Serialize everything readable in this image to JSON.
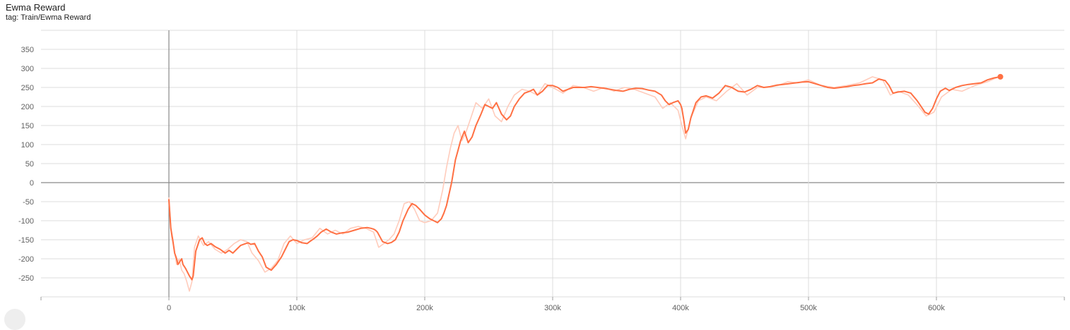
{
  "header": {
    "title": "Ewma Reward",
    "tag": "tag: Train/Ewma Reward"
  },
  "colors": {
    "smoothed_line": "#ff7043",
    "raw_line": "#ffccbc",
    "grid": "#dcdcdc",
    "zero_axis": "#8a8a8a"
  },
  "chart_data": {
    "type": "line",
    "title": "Ewma Reward",
    "xlabel": "",
    "ylabel": "",
    "xlim": [
      -100000,
      700000
    ],
    "ylim": [
      -300,
      350
    ],
    "x_ticks": [
      0,
      100000,
      200000,
      300000,
      400000,
      500000,
      600000
    ],
    "x_tick_labels": [
      "0",
      "100k",
      "200k",
      "300k",
      "400k",
      "500k",
      "600k"
    ],
    "y_ticks": [
      -250,
      -200,
      -150,
      -100,
      -50,
      0,
      50,
      100,
      150,
      200,
      250,
      300,
      350
    ],
    "y_tick_labels": [
      "-250",
      "-200",
      "-150",
      "-100",
      "-50",
      "0",
      "50",
      "100",
      "150",
      "200",
      "250",
      "300",
      "350"
    ],
    "grid": true,
    "series": [
      {
        "role": "smoothed",
        "x": [
          0,
          1500,
          3000,
          4500,
          6000,
          7000,
          8000,
          9000,
          10000,
          11000,
          12000,
          13000,
          16000,
          18000,
          19000,
          21000,
          24000,
          26000,
          28000,
          30000,
          33000,
          36000,
          40000,
          42000,
          44000,
          47000,
          50000,
          53000,
          56000,
          60000,
          62000,
          64000,
          67000,
          70000,
          73000,
          76000,
          80000,
          84000,
          88000,
          91000,
          94000,
          97000,
          100000,
          104000,
          108000,
          110000,
          113000,
          116000,
          119000,
          123000,
          127000,
          131000,
          135000,
          140000,
          145000,
          150000,
          155000,
          158000,
          160000,
          161500,
          163000,
          167000,
          171000,
          174000,
          177000,
          180000,
          183000,
          187000,
          190000,
          193000,
          196000,
          200000,
          204000,
          207000,
          210000,
          213000,
          215000,
          217000,
          219000,
          221000,
          222500,
          224000,
          226000,
          228000,
          231000,
          234000,
          237000,
          240000,
          244000,
          247000,
          250000,
          253000,
          256000,
          260000,
          264000,
          267000,
          270000,
          274000,
          278000,
          282000,
          285000,
          288000,
          292000,
          296000,
          300000,
          304000,
          308000,
          312000,
          316000,
          320000,
          325000,
          330000,
          335000,
          340000,
          345000,
          350000,
          355000,
          360000,
          365000,
          370000,
          375000,
          380000,
          385000,
          388000,
          391000,
          394000,
          398000,
          400000,
          401000,
          402500,
          404000,
          406000,
          408000,
          412000,
          416000,
          420000,
          425000,
          430000,
          435000,
          440000,
          445000,
          450000,
          455000,
          460000,
          465000,
          470000,
          475000,
          480000,
          485000,
          490000,
          495000,
          500000,
          505000,
          510000,
          515000,
          520000,
          525000,
          530000,
          535000,
          540000,
          545000,
          550000,
          555000,
          560000,
          563000,
          566000,
          570000,
          575000,
          580000,
          585000,
          588000,
          591000,
          594000,
          597000,
          600000,
          603000,
          607000,
          610000,
          615000,
          620000,
          625000,
          630000,
          635000,
          640000,
          645000,
          650000
        ],
        "y": [
          -45,
          -120,
          -150,
          -185,
          -200,
          -215,
          -210,
          -205,
          -200,
          -215,
          -220,
          -225,
          -245,
          -255,
          -245,
          -180,
          -150,
          -145,
          -160,
          -165,
          -160,
          -168,
          -175,
          -180,
          -185,
          -178,
          -185,
          -175,
          -165,
          -160,
          -158,
          -162,
          -160,
          -180,
          -195,
          -222,
          -230,
          -215,
          -195,
          -175,
          -155,
          -150,
          -152,
          -158,
          -160,
          -155,
          -148,
          -140,
          -130,
          -122,
          -130,
          -135,
          -132,
          -130,
          -125,
          -120,
          -118,
          -120,
          -122,
          -125,
          -130,
          -155,
          -160,
          -157,
          -150,
          -130,
          -100,
          -70,
          -55,
          -60,
          -70,
          -85,
          -95,
          -100,
          -105,
          -95,
          -80,
          -60,
          -30,
          0,
          30,
          60,
          85,
          110,
          135,
          105,
          120,
          150,
          180,
          205,
          200,
          195,
          210,
          180,
          165,
          175,
          200,
          220,
          235,
          240,
          245,
          230,
          240,
          255,
          255,
          250,
          240,
          245,
          250,
          250,
          250,
          252,
          250,
          248,
          245,
          242,
          240,
          245,
          248,
          247,
          243,
          240,
          230,
          215,
          205,
          210,
          215,
          205,
          195,
          165,
          130,
          140,
          170,
          210,
          225,
          228,
          222,
          235,
          255,
          250,
          240,
          238,
          245,
          255,
          250,
          252,
          256,
          258,
          260,
          262,
          264,
          265,
          260,
          255,
          250,
          248,
          250,
          252,
          255,
          257,
          260,
          262,
          272,
          268,
          255,
          235,
          238,
          240,
          235,
          215,
          200,
          185,
          180,
          195,
          220,
          240,
          248,
          242,
          250,
          255,
          258,
          260,
          262,
          270,
          275,
          278
        ]
      },
      {
        "role": "raw",
        "x": [
          0,
          2000,
          4000,
          6000,
          8000,
          10000,
          12000,
          14000,
          16000,
          18000,
          20000,
          23000,
          27000,
          31000,
          36000,
          41000,
          46000,
          51000,
          56000,
          61000,
          65000,
          70000,
          75000,
          80000,
          85000,
          90000,
          95000,
          100000,
          106000,
          112000,
          118000,
          124000,
          130000,
          136000,
          142000,
          148000,
          154000,
          160000,
          164000,
          168000,
          172000,
          176000,
          180000,
          184000,
          188000,
          192000,
          196000,
          200000,
          205000,
          210000,
          214000,
          217000,
          220000,
          223000,
          226000,
          229000,
          232000,
          236000,
          240000,
          245000,
          250000,
          255000,
          260000,
          265000,
          270000,
          276000,
          282000,
          288000,
          294000,
          300000,
          308000,
          316000,
          324000,
          332000,
          340000,
          348000,
          356000,
          364000,
          372000,
          380000,
          386000,
          392000,
          398000,
          401000,
          404000,
          408000,
          414000,
          420000,
          428000,
          436000,
          444000,
          452000,
          460000,
          468000,
          476000,
          484000,
          492000,
          500000,
          510000,
          520000,
          530000,
          540000,
          550000,
          558000,
          564000,
          570000,
          578000,
          586000,
          592000,
          598000,
          604000,
          612000,
          620000,
          630000,
          640000,
          650000
        ],
        "y": [
          -40,
          -140,
          -170,
          -215,
          -200,
          -230,
          -240,
          -260,
          -285,
          -260,
          -170,
          -140,
          -165,
          -155,
          -175,
          -185,
          -175,
          -160,
          -150,
          -155,
          -185,
          -205,
          -235,
          -225,
          -205,
          -160,
          -140,
          -160,
          -150,
          -145,
          -120,
          -135,
          -125,
          -135,
          -120,
          -115,
          -120,
          -130,
          -170,
          -160,
          -150,
          -135,
          -100,
          -55,
          -50,
          -70,
          -100,
          -105,
          -100,
          -80,
          -20,
          40,
          90,
          130,
          150,
          110,
          130,
          170,
          210,
          195,
          220,
          175,
          160,
          200,
          230,
          245,
          240,
          230,
          260,
          250,
          235,
          255,
          250,
          240,
          250,
          240,
          250,
          245,
          235,
          225,
          195,
          210,
          190,
          150,
          115,
          170,
          215,
          225,
          215,
          240,
          260,
          230,
          250,
          250,
          255,
          265,
          262,
          270,
          255,
          250,
          255,
          262,
          278,
          270,
          230,
          240,
          230,
          200,
          175,
          185,
          225,
          245,
          240,
          255,
          265,
          280
        ]
      }
    ],
    "last_point": {
      "x": 650000,
      "y": 278
    }
  }
}
